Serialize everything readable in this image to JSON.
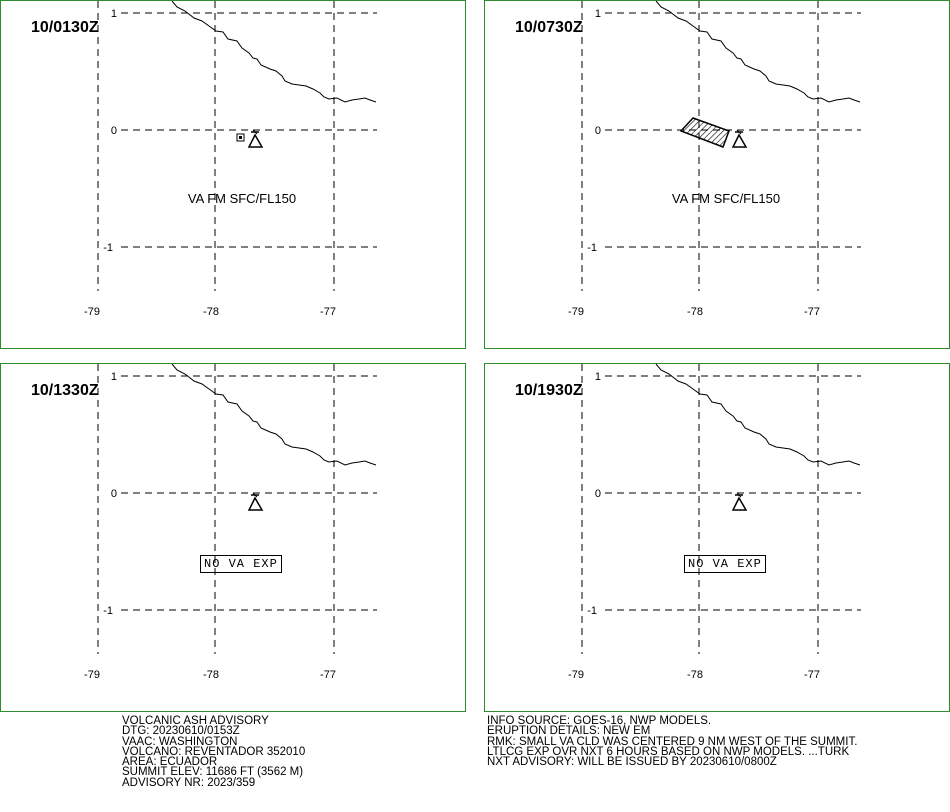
{
  "panels": [
    {
      "time": "10/0130Z",
      "va_text": "VA FM SFC/FL150",
      "box_text": "",
      "cloud": "small"
    },
    {
      "time": "10/0730Z",
      "va_text": "VA FM SFC/FL150",
      "box_text": "",
      "cloud": "polygon"
    },
    {
      "time": "10/1330Z",
      "va_text": "",
      "box_text": "NO VA EXP",
      "cloud": "none"
    },
    {
      "time": "10/1930Z",
      "va_text": "",
      "box_text": "NO VA EXP",
      "cloud": "none"
    }
  ],
  "map": {
    "lon_ticks": [
      "-79",
      "-78",
      "-77"
    ],
    "lat_ticks": [
      "1",
      "0",
      "-1"
    ],
    "volcano_symbol": "volcano-icon"
  },
  "advisory_left": [
    "VOLCANIC ASH ADVISORY",
    "DTG: 20230610/0153Z",
    "VAAC: WASHINGTON",
    "VOLCANO: REVENTADOR 352010",
    "AREA: ECUADOR",
    "SUMMIT ELEV: 11686 FT (3562 M)",
    "ADVISORY NR: 2023/359"
  ],
  "advisory_right": [
    "INFO SOURCE: GOES-16, NWP MODELS.",
    "ERUPTION DETAILS: NEW EM",
    "RMK: SMALL VA CLD WAS CENTERED 9 NM WEST OF THE SUMMIT.",
    "LTLCG EXP OVR NXT 6 HOURS BASED ON NWP MODELS. ...TURK",
    "NXT ADVISORY: WILL BE ISSUED BY 20230610/0800Z"
  ],
  "colors": {
    "frame": "#2e8b2e",
    "lines": "#000000",
    "background": "#ffffff"
  }
}
